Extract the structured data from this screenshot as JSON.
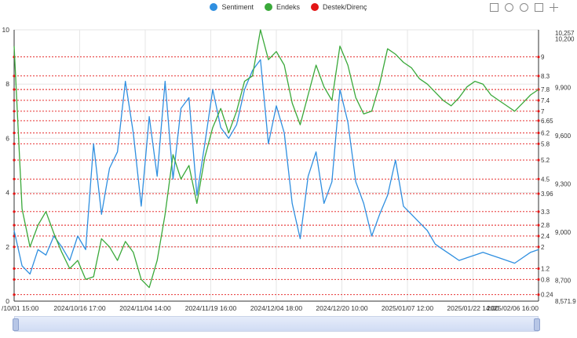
{
  "legend": [
    {
      "label": "Sentiment",
      "color": "#2f8fe0"
    },
    {
      "label": "Endeks",
      "color": "#3aa93a"
    },
    {
      "label": "Destek/Direnç",
      "color": "#e31515"
    }
  ],
  "toolbox_icons": [
    "zoom-icon",
    "zoom-reset-icon",
    "restore-icon",
    "data-view-icon",
    "save-image-icon"
  ],
  "chart_data": {
    "type": "line",
    "x_ticks": [
      "/10/01 15:00",
      "2024/10/16 17:00",
      "2024/11/04 14:00",
      "2024/11/19 16:00",
      "2024/12/04 18:00",
      "2024/12/20 10:00",
      "2025/01/07 12:00",
      "2025/01/22 14:00",
      "2025/02/06 16:00"
    ],
    "y_left": {
      "ticks": [
        "0",
        "2",
        "4",
        "6",
        "8",
        "10"
      ],
      "min": 0,
      "max": 10
    },
    "y_right": {
      "ticks": [
        "8,571.9",
        "8,700",
        "9,000",
        "9,300",
        "9,600",
        "9,900",
        "10,200",
        "10,257"
      ],
      "min": 8571.9,
      "max": 10257
    },
    "support_resistance": [
      9,
      8.3,
      7.8,
      7.4,
      7,
      6.65,
      6.2,
      5.8,
      5.2,
      4.5,
      3.96,
      3.3,
      2.8,
      2.4,
      2,
      1.2,
      0.8,
      0.24
    ],
    "series": [
      {
        "name": "Sentiment",
        "color": "#2f8fe0",
        "axis": "left",
        "x": [
          0,
          3,
          6,
          9,
          12,
          15,
          18,
          21,
          24,
          27,
          30,
          33,
          36,
          39,
          42,
          45,
          48,
          51,
          54,
          57,
          60,
          63,
          66,
          69,
          72,
          75,
          78,
          81,
          84,
          87,
          90,
          93,
          96,
          99,
          102,
          105,
          108,
          111,
          114,
          117,
          120,
          123,
          126,
          129,
          132,
          135,
          138,
          141,
          144,
          147,
          150,
          153,
          156,
          159,
          162,
          165,
          168,
          171,
          174,
          177,
          180,
          183,
          186,
          189,
          192,
          195,
          198
        ],
        "values": [
          2.6,
          1.3,
          1.0,
          1.9,
          1.7,
          2.4,
          2.0,
          1.5,
          2.4,
          1.9,
          5.8,
          3.2,
          4.9,
          5.5,
          8.1,
          6.2,
          3.5,
          6.8,
          4.6,
          8.1,
          4.5,
          7.1,
          7.5,
          3.9,
          5.8,
          7.8,
          6.4,
          6.0,
          6.5,
          7.8,
          8.5,
          8.9,
          5.8,
          7.2,
          6.2,
          3.6,
          2.3,
          4.6,
          5.5,
          3.6,
          4.4,
          7.8,
          6.6,
          4.4,
          3.6,
          2.4,
          3.2,
          3.9,
          5.2,
          3.5,
          3.2,
          2.9,
          2.6,
          2.1,
          1.9,
          1.7,
          1.5,
          1.6,
          1.7,
          1.8,
          1.7,
          1.6,
          1.5,
          1.4,
          1.6,
          1.8,
          1.9
        ]
      },
      {
        "name": "Endeks",
        "color": "#3aa93a",
        "axis": "right",
        "x": [
          0,
          3,
          6,
          9,
          12,
          15,
          18,
          21,
          24,
          27,
          30,
          33,
          36,
          39,
          42,
          45,
          48,
          51,
          54,
          57,
          60,
          63,
          66,
          69,
          72,
          75,
          78,
          81,
          84,
          87,
          90,
          93,
          96,
          99,
          102,
          105,
          108,
          111,
          114,
          117,
          120,
          123,
          126,
          129,
          132,
          135,
          138,
          141,
          144,
          147,
          150,
          153,
          156,
          159,
          162,
          165,
          168,
          171,
          174,
          177,
          180,
          183,
          186,
          189,
          192,
          195,
          198
        ],
        "values": [
          9.4,
          3.4,
          2.0,
          2.8,
          3.3,
          2.5,
          1.8,
          1.2,
          1.5,
          0.8,
          0.9,
          2.3,
          2.0,
          1.5,
          2.2,
          1.8,
          0.8,
          0.5,
          1.5,
          3.2,
          5.4,
          4.5,
          5.0,
          3.6,
          5.3,
          6.4,
          7.1,
          6.2,
          7.0,
          8.1,
          8.3,
          10.0,
          8.9,
          9.2,
          8.7,
          7.3,
          6.5,
          7.6,
          8.7,
          7.9,
          7.4,
          9.4,
          8.7,
          7.5,
          6.9,
          7.0,
          8.0,
          9.3,
          9.1,
          8.8,
          8.6,
          8.2,
          8.0,
          7.7,
          7.4,
          7.2,
          7.5,
          7.9,
          8.1,
          8.0,
          7.6,
          7.4,
          7.2,
          7.0,
          7.3,
          7.6,
          7.8
        ]
      }
    ]
  }
}
